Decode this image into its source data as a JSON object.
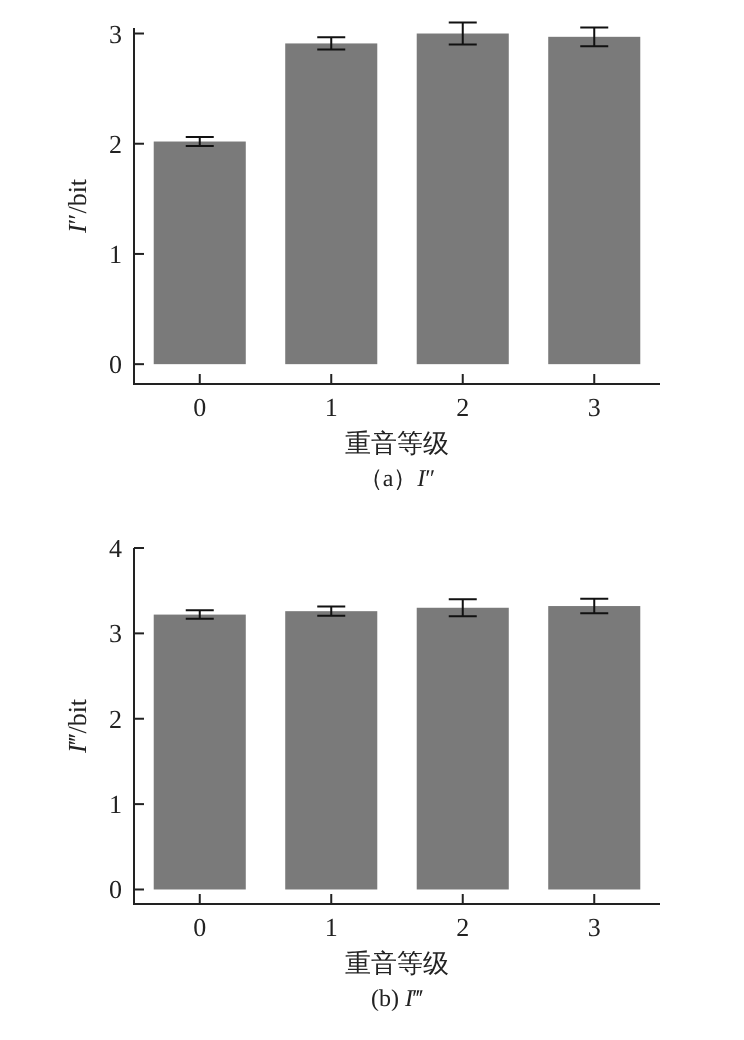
{
  "chart_data": [
    {
      "type": "bar",
      "title": "（a）I″",
      "xlabel": "重音等级",
      "ylabel": "I″/bit",
      "categories": [
        "0",
        "1",
        "2",
        "3"
      ],
      "values": [
        2.02,
        2.91,
        3.0,
        2.97
      ],
      "errors": [
        0.04,
        0.055,
        0.1,
        0.085
      ],
      "color": "#7a7a7a",
      "ylim": [
        -0.18,
        3.05
      ],
      "yticks": [
        0,
        1,
        2,
        3
      ]
    },
    {
      "type": "bar",
      "title": "(b) I‴",
      "xlabel": "重音等级",
      "ylabel": "I‴/bit",
      "categories": [
        "0",
        "1",
        "2",
        "3"
      ],
      "values": [
        3.22,
        3.26,
        3.3,
        3.32
      ],
      "errors": [
        0.05,
        0.055,
        0.1,
        0.085
      ],
      "color": "#7a7a7a",
      "ylim": [
        -0.17,
        4
      ],
      "yticks": [
        0,
        1,
        2,
        3,
        4
      ]
    }
  ]
}
